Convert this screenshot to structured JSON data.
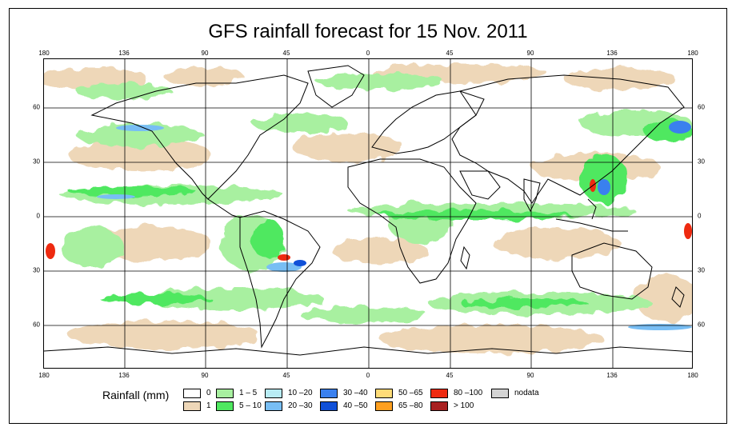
{
  "title": "GFS rainfall forecast for 15 Nov. 2011",
  "map": {
    "lon_ticks": [
      "180",
      "136",
      "90",
      "45",
      "0",
      "45",
      "90",
      "136",
      "180"
    ],
    "lat_ticks": [
      "60",
      "30",
      "0",
      "30",
      "60"
    ]
  },
  "legend": {
    "title": "Rainfall (mm)",
    "items": [
      {
        "label": "0",
        "color": "#ffffff"
      },
      {
        "label": "1",
        "color": "#eed7b8"
      },
      {
        "label": "1 – 5",
        "color": "#a8f0a0"
      },
      {
        "label": "5 – 10",
        "color": "#4fe860"
      },
      {
        "label": "10 –20",
        "color": "#b8ecf4"
      },
      {
        "label": "20 –30",
        "color": "#78bef4"
      },
      {
        "label": "30 –40",
        "color": "#3a80ee"
      },
      {
        "label": "40 –50",
        "color": "#1050d8"
      },
      {
        "label": "50 –65",
        "color": "#ffdc78"
      },
      {
        "label": "65 –80",
        "color": "#ffa020"
      },
      {
        "label": "80 –100",
        "color": "#ee2a10"
      },
      {
        "label": "> 100",
        "color": "#a82020"
      },
      {
        "label": "nodata",
        "color": "#d4d4d4"
      }
    ]
  }
}
